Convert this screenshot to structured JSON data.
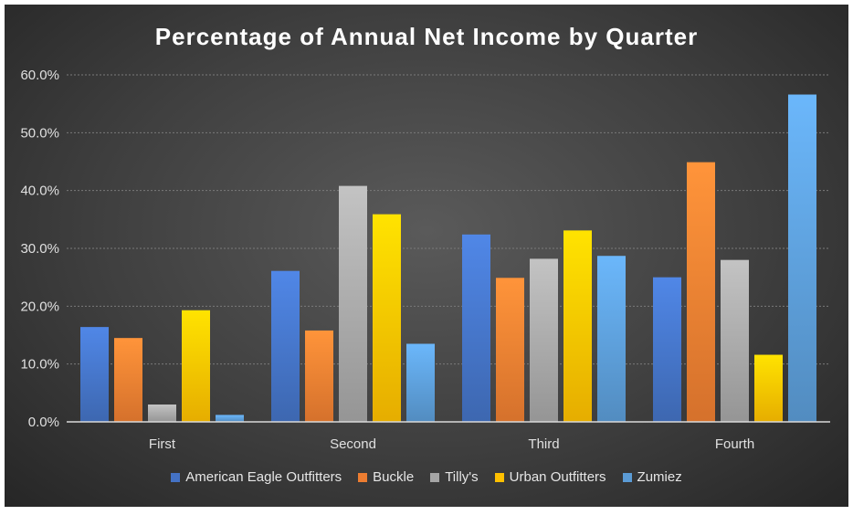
{
  "chart_data": {
    "type": "bar",
    "title": "Percentage of Annual Net Income by Quarter",
    "categories": [
      "First",
      "Second",
      "Third",
      "Fourth"
    ],
    "series": [
      {
        "name": "American Eagle Outfitters",
        "color": "#4472C4",
        "values": [
          16.4,
          26.1,
          32.4,
          25.0
        ]
      },
      {
        "name": "Buckle",
        "color": "#ED7D31",
        "values": [
          14.5,
          15.8,
          24.9,
          44.9
        ]
      },
      {
        "name": "Tilly's",
        "color": "#A5A5A5",
        "values": [
          3.0,
          40.8,
          28.2,
          28.0
        ]
      },
      {
        "name": "Urban Outfitters",
        "color": "#FFC000",
        "values": [
          19.3,
          35.9,
          33.1,
          11.6
        ]
      },
      {
        "name": "Zumiez",
        "color": "#5B9BD5",
        "values": [
          1.2,
          13.5,
          28.7,
          56.6
        ]
      }
    ],
    "yticks": [
      "0.0%",
      "10.0%",
      "20.0%",
      "30.0%",
      "40.0%",
      "50.0%",
      "60.0%"
    ],
    "ylim": [
      0,
      60
    ],
    "legend_position": "bottom"
  }
}
